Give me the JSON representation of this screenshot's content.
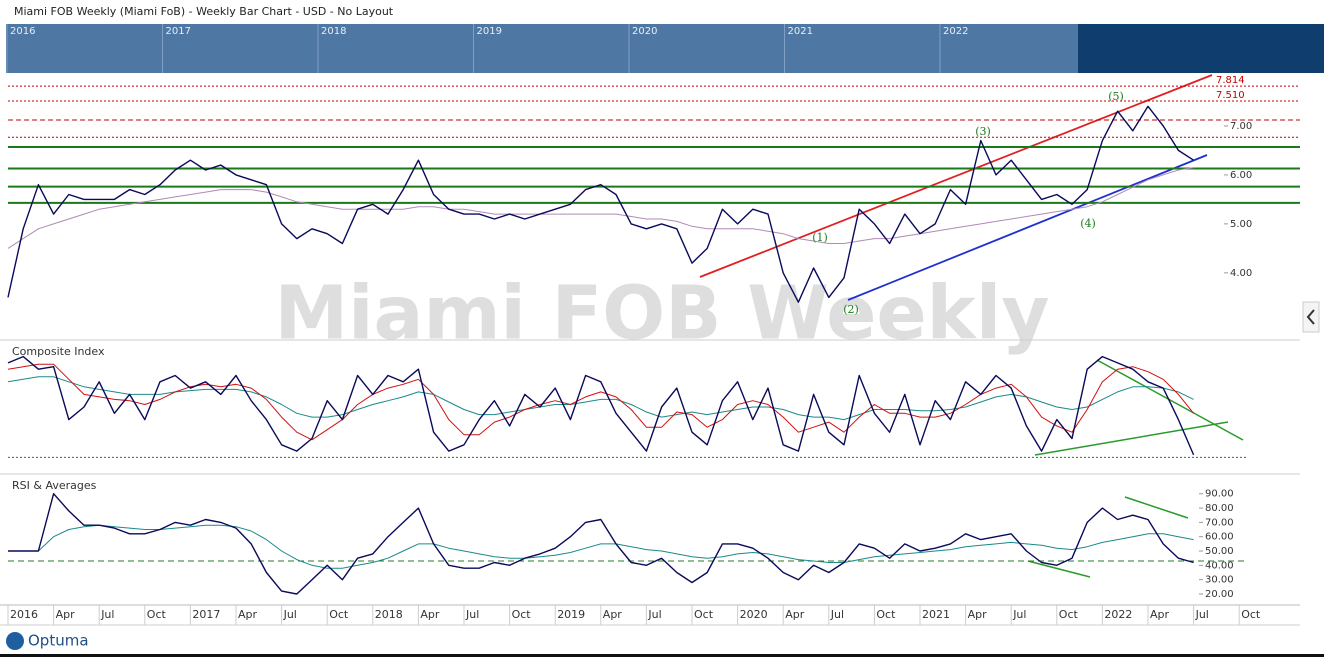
{
  "title": "Miami FOB Weekly (Miami FoB) - Weekly Bar Chart - USD - No Layout",
  "watermark": "Miami FOB Weekly",
  "logo": "Optuma",
  "navigator": [
    "2016",
    "2017",
    "2018",
    "2019",
    "2020",
    "2021",
    "2022"
  ],
  "chart_data": [
    {
      "type": "line",
      "ylim": [
        2.67,
        8.04
      ],
      "yticks": [
        {
          "value": 4,
          "label": "4.00"
        },
        {
          "value": 5,
          "label": "5.00"
        },
        {
          "value": 6,
          "label": "6.00"
        },
        {
          "value": 7,
          "label": "7.00"
        }
      ],
      "levels": [
        {
          "value": 7.814,
          "label": "7.814",
          "color": "#c00000",
          "dash": "2,2"
        },
        {
          "value": 7.51,
          "label": "7.510",
          "color": "#c00000",
          "dash": "2,2"
        },
        {
          "value": 7.12,
          "color": "#c00000",
          "dash": "5,3"
        },
        {
          "value": 6.77,
          "color": "#c00000",
          "dash": "2,2"
        },
        {
          "value": 6.57,
          "color": "#1a7a1a",
          "dash": "none"
        },
        {
          "value": 6.13,
          "color": "#1a7a1a",
          "dash": "none"
        },
        {
          "value": 5.76,
          "color": "#1a7a1a",
          "dash": "none"
        },
        {
          "value": 5.43,
          "color": "#1a7a1a",
          "dash": "none"
        }
      ],
      "annotations": [
        "(1)",
        "(2)",
        "(3)",
        "(4)",
        "(5)"
      ],
      "series": [
        {
          "color": "#b08ab8",
          "values": [
            4.5,
            4.7,
            4.9,
            5.0,
            5.1,
            5.2,
            5.3,
            5.35,
            5.4,
            5.45,
            5.5,
            5.55,
            5.6,
            5.65,
            5.7,
            5.7,
            5.7,
            5.65,
            5.55,
            5.45,
            5.4,
            5.35,
            5.3,
            5.3,
            5.3,
            5.3,
            5.3,
            5.35,
            5.35,
            5.3,
            5.3,
            5.25,
            5.2,
            5.2,
            5.2,
            5.2,
            5.2,
            5.2,
            5.2,
            5.2,
            5.2,
            5.15,
            5.1,
            5.1,
            5.05,
            4.95,
            4.9,
            4.9,
            4.9,
            4.9,
            4.85,
            4.8,
            4.7,
            4.65,
            4.6,
            4.6,
            4.65,
            4.7,
            4.7,
            4.75,
            4.8,
            4.85,
            4.9,
            4.95,
            5.0,
            5.05,
            5.1,
            5.15,
            5.2,
            5.25,
            5.3,
            5.35,
            5.45,
            5.6,
            5.75,
            5.9,
            6.0,
            6.1,
            6.15,
            null,
            null,
            null,
            null,
            null
          ]
        },
        {
          "color": "#0a0a5a",
          "values": [
            3.5,
            4.9,
            5.8,
            5.2,
            5.6,
            5.5,
            5.5,
            5.5,
            5.7,
            5.6,
            5.8,
            6.1,
            6.3,
            6.1,
            6.2,
            6.0,
            5.9,
            5.8,
            5.0,
            4.7,
            4.9,
            4.8,
            4.6,
            5.3,
            5.4,
            5.2,
            5.7,
            6.3,
            5.6,
            5.3,
            5.2,
            5.2,
            5.1,
            5.2,
            5.1,
            5.2,
            5.3,
            5.4,
            5.7,
            5.8,
            5.6,
            5.0,
            4.9,
            5.0,
            4.9,
            4.2,
            4.5,
            5.3,
            5.0,
            5.3,
            5.2,
            4.0,
            3.4,
            4.1,
            3.5,
            3.9,
            5.3,
            5.0,
            4.6,
            5.2,
            4.8,
            5.0,
            5.7,
            5.4,
            6.7,
            6.0,
            6.3,
            5.9,
            5.5,
            5.6,
            5.4,
            5.7,
            6.7,
            7.3,
            6.9,
            7.4,
            7.0,
            6.5,
            6.3,
            null,
            null,
            null,
            null,
            null
          ]
        }
      ]
    },
    {
      "type": "line",
      "title": "Composite Index",
      "ylim": [
        0,
        100
      ],
      "baseline": 10,
      "series": [
        {
          "color": "#1a8a8a",
          "values": [
            70,
            72,
            74,
            74,
            70,
            66,
            64,
            62,
            60,
            60,
            60,
            62,
            63,
            64,
            64,
            64,
            62,
            58,
            52,
            45,
            42,
            42,
            44,
            48,
            52,
            55,
            58,
            62,
            60,
            54,
            48,
            44,
            44,
            46,
            48,
            50,
            52,
            52,
            54,
            56,
            56,
            52,
            46,
            42,
            44,
            46,
            44,
            46,
            48,
            50,
            50,
            48,
            44,
            42,
            42,
            40,
            44,
            48,
            48,
            48,
            47,
            47,
            48,
            50,
            54,
            58,
            60,
            58,
            54,
            50,
            48,
            50,
            56,
            62,
            66,
            66,
            65,
            62,
            56,
            null,
            null,
            null,
            null,
            null
          ]
        },
        {
          "color": "#d01010",
          "values": [
            80,
            82,
            84,
            84,
            72,
            60,
            58,
            56,
            55,
            52,
            56,
            62,
            66,
            68,
            66,
            68,
            65,
            56,
            42,
            30,
            24,
            32,
            40,
            52,
            60,
            65,
            68,
            72,
            60,
            40,
            28,
            28,
            38,
            42,
            48,
            52,
            55,
            52,
            58,
            62,
            58,
            48,
            34,
            34,
            46,
            44,
            34,
            40,
            52,
            55,
            52,
            42,
            30,
            34,
            38,
            30,
            42,
            52,
            45,
            45,
            42,
            42,
            45,
            52,
            60,
            65,
            68,
            58,
            42,
            35,
            30,
            48,
            70,
            80,
            82,
            78,
            72,
            60,
            45,
            null,
            null,
            null,
            null,
            null
          ]
        },
        {
          "color": "#0a0a5a",
          "values": [
            85,
            90,
            80,
            82,
            40,
            50,
            70,
            45,
            60,
            40,
            70,
            75,
            65,
            70,
            60,
            75,
            55,
            40,
            20,
            15,
            25,
            55,
            40,
            75,
            60,
            75,
            70,
            80,
            30,
            15,
            20,
            40,
            55,
            35,
            60,
            50,
            65,
            40,
            75,
            70,
            45,
            30,
            15,
            50,
            65,
            30,
            20,
            55,
            70,
            40,
            65,
            20,
            15,
            60,
            30,
            20,
            75,
            45,
            30,
            60,
            20,
            55,
            40,
            70,
            60,
            75,
            65,
            35,
            15,
            40,
            25,
            80,
            90,
            85,
            80,
            70,
            65,
            40,
            12,
            null,
            null,
            null,
            null,
            null
          ]
        }
      ]
    },
    {
      "type": "line",
      "title": "RSI & Averages",
      "ylim": [
        12.3,
        101
      ],
      "baseline": 43,
      "yticks": [
        {
          "value": 20,
          "label": "20.00"
        },
        {
          "value": 30,
          "label": "30.00"
        },
        {
          "value": 40,
          "label": "40.00"
        },
        {
          "value": 50,
          "label": "50.00"
        },
        {
          "value": 60,
          "label": "60.00"
        },
        {
          "value": 70,
          "label": "70.00"
        },
        {
          "value": 80,
          "label": "80.00"
        },
        {
          "value": 90,
          "label": "90.00"
        }
      ],
      "categories": [
        "2016",
        null,
        null,
        "Apr",
        null,
        null,
        "Jul",
        null,
        null,
        "Oct",
        null,
        null,
        "2017",
        null,
        null,
        "Apr",
        null,
        null,
        "Jul",
        null,
        null,
        "Oct",
        null,
        null,
        "2018",
        null,
        null,
        "Apr",
        null,
        null,
        "Jul",
        null,
        null,
        "Oct",
        null,
        null,
        "2019",
        null,
        null,
        "Apr",
        null,
        null,
        "Jul",
        null,
        null,
        "Oct",
        null,
        null,
        "2020",
        null,
        null,
        "Apr",
        null,
        null,
        "Jul",
        null,
        null,
        "Oct",
        null,
        null,
        "2021",
        null,
        null,
        "Apr",
        null,
        null,
        "Jul",
        null,
        null,
        "Oct",
        null,
        null,
        "2022",
        null,
        null,
        "Apr",
        null,
        null,
        "Jul",
        null,
        null,
        "Oct",
        null,
        null
      ],
      "series": [
        {
          "color": "#1a8a8a",
          "values": [
            50,
            50,
            50,
            60,
            65,
            67,
            68,
            67,
            66,
            65,
            65,
            66,
            67,
            68,
            68,
            67,
            64,
            58,
            50,
            44,
            40,
            38,
            38,
            40,
            42,
            45,
            50,
            55,
            55,
            52,
            50,
            48,
            46,
            45,
            45,
            46,
            47,
            49,
            52,
            55,
            55,
            53,
            51,
            50,
            48,
            46,
            45,
            46,
            48,
            49,
            48,
            46,
            44,
            43,
            42,
            42,
            44,
            46,
            47,
            48,
            49,
            50,
            51,
            53,
            54,
            55,
            56,
            55,
            54,
            52,
            51,
            53,
            56,
            58,
            60,
            62,
            62,
            60,
            58,
            null,
            null,
            null,
            null,
            null
          ]
        },
        {
          "color": "#0a0a5a",
          "values": [
            50,
            50,
            50,
            90,
            78,
            68,
            68,
            66,
            62,
            62,
            65,
            70,
            68,
            72,
            70,
            66,
            55,
            35,
            22,
            20,
            30,
            40,
            30,
            45,
            48,
            60,
            70,
            80,
            55,
            40,
            38,
            38,
            42,
            40,
            45,
            48,
            52,
            60,
            70,
            72,
            55,
            42,
            40,
            45,
            35,
            28,
            35,
            55,
            55,
            52,
            45,
            35,
            30,
            40,
            35,
            42,
            55,
            52,
            45,
            55,
            50,
            52,
            55,
            62,
            58,
            60,
            62,
            50,
            42,
            40,
            45,
            70,
            80,
            72,
            75,
            72,
            55,
            45,
            42,
            null,
            null,
            null,
            null,
            null
          ]
        }
      ]
    }
  ]
}
